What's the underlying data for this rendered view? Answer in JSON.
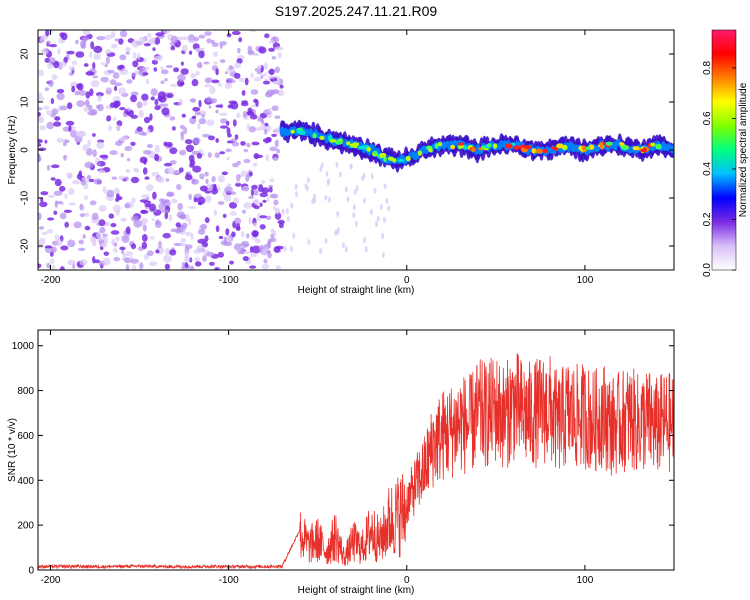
{
  "title": "S197.2025.247.11.21.R09",
  "colors": {
    "snr_line": "#e8302a",
    "scatter_dots": "#8a2be2",
    "axis": "#000000"
  },
  "chart_data": [
    {
      "type": "heatmap",
      "name": "spectrogram",
      "xlabel": "Height of straight line (km)",
      "ylabel": "Frequency (Hz)",
      "xlim": [
        -207,
        150
      ],
      "ylim": [
        -25,
        25
      ],
      "xticks": [
        -200,
        -100,
        0,
        100
      ],
      "xtick_labels": [
        "-200",
        "-100",
        "0",
        "100"
      ],
      "yticks": [
        -20,
        -10,
        0,
        10,
        20
      ],
      "ytick_labels": [
        "-20",
        "-10",
        "0",
        "10",
        "20"
      ],
      "noise_region_x": [
        -207,
        -70
      ],
      "signal_ridge": {
        "x": [
          -70,
          -60,
          -50,
          -40,
          -30,
          -20,
          -10,
          0,
          10,
          20,
          30,
          40,
          50,
          60,
          70,
          80,
          90,
          100,
          110,
          120,
          130,
          140,
          150
        ],
        "freq": [
          4,
          4,
          3,
          2,
          1,
          0,
          -2,
          -2,
          0,
          1,
          1,
          0,
          1,
          1,
          0,
          0,
          1,
          0,
          1,
          1,
          0,
          1,
          0
        ]
      },
      "colorbar": {
        "label": "Normalized spectral amplitude",
        "range": [
          0.0,
          0.95
        ],
        "ticks": [
          0.0,
          0.2,
          0.4,
          0.6,
          0.8
        ],
        "tick_labels": [
          "0.0",
          "0.2",
          "0.4",
          "0.6",
          "0.8"
        ],
        "colorscale": [
          "#ffffff",
          "#d8c0f8",
          "#7a2be2",
          "#0000ff",
          "#00bfff",
          "#00ff80",
          "#7fff00",
          "#ffff00",
          "#ff8000",
          "#ff0000",
          "#ff1a6e"
        ]
      }
    },
    {
      "type": "line",
      "name": "snr",
      "xlabel": "Height of straight line (km)",
      "ylabel": "SNR (10 * v/v)",
      "xlim": [
        -207,
        150
      ],
      "ylim": [
        0,
        1070
      ],
      "xticks": [
        -200,
        -100,
        0,
        100
      ],
      "xtick_labels": [
        "-200",
        "-100",
        "0",
        "100"
      ],
      "yticks": [
        0,
        200,
        400,
        600,
        800,
        1000
      ],
      "ytick_labels": [
        "0",
        "200",
        "400",
        "600",
        "800",
        "1000"
      ],
      "series": [
        {
          "name": "SNR",
          "x": [
            -207,
            -190,
            -170,
            -150,
            -130,
            -110,
            -90,
            -70,
            -60,
            -55,
            -50,
            -45,
            -40,
            -35,
            -30,
            -25,
            -20,
            -15,
            -10,
            -5,
            0,
            5,
            10,
            15,
            20,
            25,
            30,
            35,
            40,
            45,
            50,
            55,
            60,
            65,
            70,
            75,
            80,
            85,
            90,
            95,
            100,
            105,
            110,
            115,
            120,
            125,
            130,
            135,
            140,
            145,
            150
          ],
          "values": [
            15,
            16,
            15,
            17,
            15,
            16,
            15,
            16,
            180,
            120,
            150,
            90,
            170,
            60,
            140,
            110,
            200,
            140,
            240,
            270,
            300,
            380,
            450,
            560,
            600,
            620,
            660,
            640,
            700,
            690,
            720,
            680,
            740,
            700,
            690,
            710,
            720,
            650,
            700,
            680,
            690,
            660,
            700,
            640,
            660,
            680,
            650,
            670,
            640,
            660,
            650
          ]
        }
      ]
    }
  ]
}
